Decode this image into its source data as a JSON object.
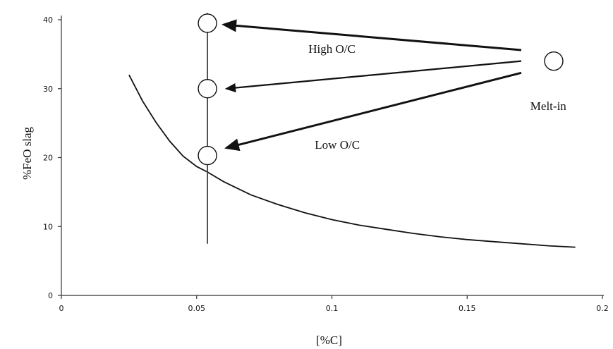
{
  "chart_data": {
    "type": "line",
    "title": "",
    "xlabel": "[%C]",
    "ylabel": "%FeO slag",
    "xlim": [
      0,
      0.2
    ],
    "ylim": [
      0,
      40
    ],
    "x_ticks": [
      0,
      0.05,
      0.1,
      0.15,
      0.2
    ],
    "x_tick_labels": [
      "0",
      "0.05",
      "0.1",
      "0.15",
      "0.2"
    ],
    "y_ticks": [
      0,
      10,
      20,
      30,
      40
    ],
    "y_tick_labels": [
      "0",
      "10",
      "20",
      "30",
      "40"
    ],
    "grid": false,
    "series": [
      {
        "x": [
          0.025,
          0.03,
          0.035,
          0.04,
          0.045,
          0.05,
          0.054,
          0.06,
          0.07,
          0.08,
          0.09,
          0.1,
          0.11,
          0.12,
          0.13,
          0.14,
          0.15,
          0.16,
          0.17,
          0.18,
          0.19
        ],
        "y": [
          32,
          28.2,
          25.1,
          22.4,
          20.2,
          18.7,
          17.9,
          16.5,
          14.6,
          13.2,
          12.0,
          11.0,
          10.2,
          9.6,
          9.0,
          8.5,
          8.1,
          7.8,
          7.5,
          7.2,
          7.0
        ]
      }
    ],
    "vertical_line": {
      "x": 0.054,
      "y_range": [
        7.5,
        41
      ]
    },
    "points": [
      {
        "id": "melt-in",
        "x": 0.182,
        "y": 34
      },
      {
        "id": "high",
        "x": 0.054,
        "y": 39.5
      },
      {
        "id": "mid",
        "x": 0.054,
        "y": 30
      },
      {
        "id": "low",
        "x": 0.054,
        "y": 20.3
      }
    ],
    "arrows": [
      {
        "from": [
          0.17,
          35.6
        ],
        "to": [
          0.06,
          39.3
        ]
      },
      {
        "from": [
          0.17,
          34.0
        ],
        "to": [
          0.061,
          30.0
        ]
      },
      {
        "from": [
          0.17,
          32.3
        ],
        "to": [
          0.061,
          21.4
        ]
      }
    ],
    "annotations": [
      {
        "text": "High O/C",
        "x": 0.1,
        "y": 35.2
      },
      {
        "text": "Low O/C",
        "x": 0.102,
        "y": 21.3
      },
      {
        "text": "Melt-in",
        "x": 0.18,
        "y": 26.9
      }
    ]
  }
}
